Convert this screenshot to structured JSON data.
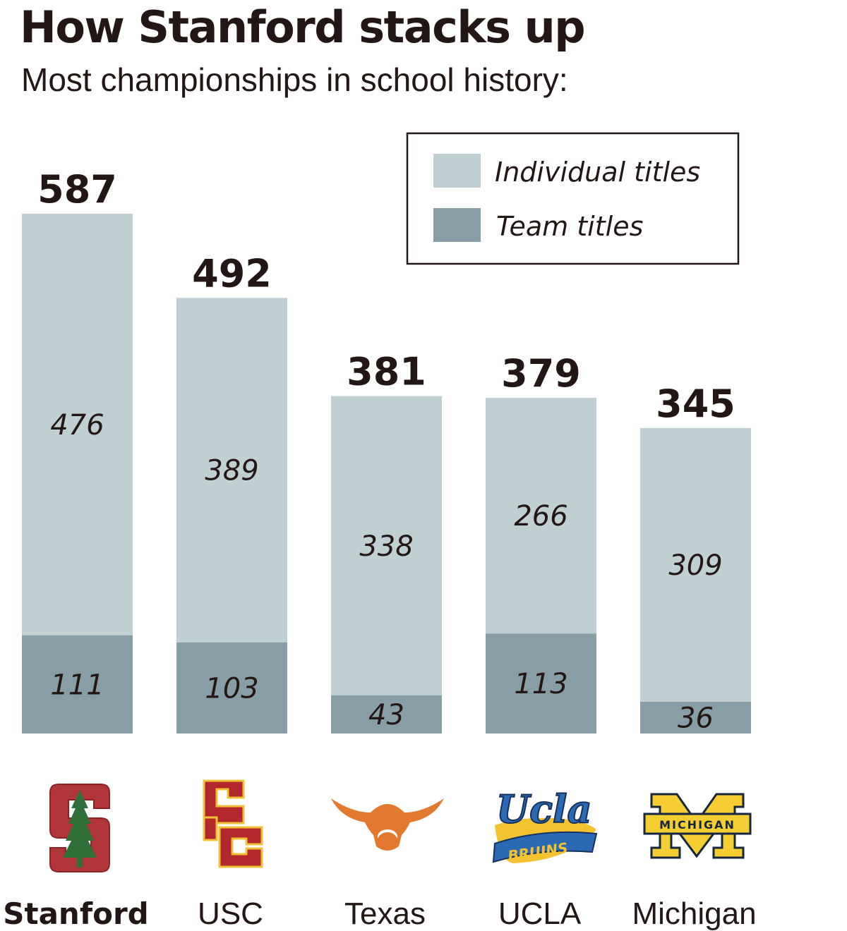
{
  "header": {
    "title": "How Stanford stacks up",
    "subtitle": "Most championships in school history:"
  },
  "colors": {
    "individual": "#c0cfd1",
    "team": "#889ea6",
    "text": "#231716"
  },
  "legend": {
    "placement": "top-right",
    "individual_label": "Individual titles",
    "team_label": "Team titles"
  },
  "chart_data": {
    "type": "bar",
    "stacked": true,
    "categories": [
      "Stanford",
      "USC",
      "Texas",
      "UCLA",
      "Michigan"
    ],
    "series": [
      {
        "name": "Team titles",
        "values": [
          111,
          103,
          43,
          113,
          36
        ]
      },
      {
        "name": "Individual titles",
        "values": [
          476,
          389,
          338,
          266,
          309
        ]
      }
    ],
    "totals": [
      587,
      492,
      381,
      379,
      345
    ],
    "logos": [
      "stanford-logo",
      "usc-logo",
      "texas-logo",
      "ucla-logo",
      "michigan-logo"
    ],
    "logo_text": {
      "UCLA": "Ucla",
      "UCLA_sub": "BRUINS",
      "Michigan": "MICHIGAN"
    },
    "grid": false
  }
}
